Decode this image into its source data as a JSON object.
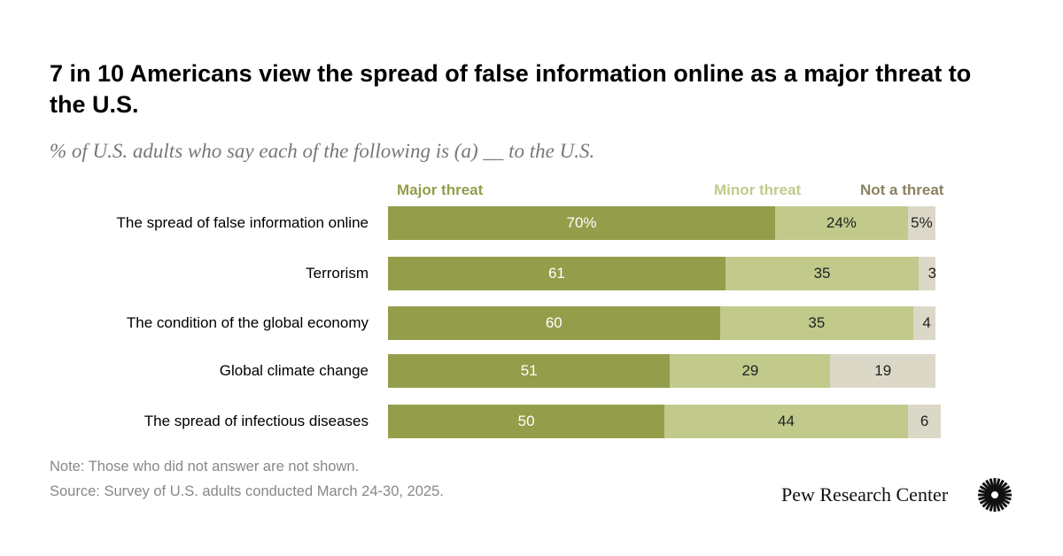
{
  "title": "7 in 10 Americans view the spread of false information online as a major threat to the U.S.",
  "subtitle": "% of U.S. adults who say each of the following is (a) __ to the U.S.",
  "chart_data": {
    "type": "bar",
    "orientation": "horizontal",
    "stacked": true,
    "categories": [
      "The spread of false information online",
      "Terrorism",
      "The condition of the global economy",
      "Global climate change",
      "The spread of infectious diseases"
    ],
    "series": [
      {
        "name": "Major threat",
        "color": "#949d4a",
        "values": [
          70,
          61,
          60,
          51,
          50
        ],
        "labels": [
          "70%",
          "61",
          "60",
          "51",
          "50"
        ]
      },
      {
        "name": "Minor threat",
        "color": "#c2ca8b",
        "values": [
          24,
          35,
          35,
          29,
          44
        ],
        "labels": [
          "24%",
          "35",
          "35",
          "29",
          "44"
        ]
      },
      {
        "name": "Not a threat",
        "color": "#dcd8c8",
        "values": [
          5,
          3,
          4,
          19,
          6
        ],
        "labels": [
          "5%",
          "3",
          "4",
          "19",
          "6"
        ]
      }
    ],
    "legend_colors": [
      "#949d4a",
      "#c2ca8b",
      "#8a8260"
    ],
    "legend": "top",
    "grid": false
  },
  "note": "Note: Those who did not answer are not shown.",
  "source": "Source: Survey of U.S. adults conducted March 24-30, 2025.",
  "logo_text": "Pew Research Center"
}
